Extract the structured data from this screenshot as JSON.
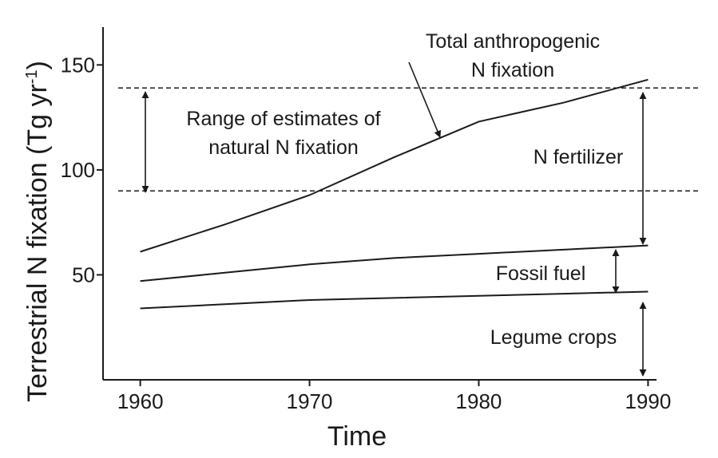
{
  "chart_data": {
    "type": "line",
    "title": "",
    "xlabel": "Time",
    "ylabel": {
      "main": "Terrestrial N fixation (Tg yr",
      "sup": "-1",
      "close": ")"
    },
    "xlim": [
      1957.8,
      1990.5
    ],
    "ylim": [
      0,
      168
    ],
    "xticks": [
      1960,
      1970,
      1980,
      1990
    ],
    "yticks": [
      50,
      100,
      150
    ],
    "grid": false,
    "series": [
      {
        "name": "Total anthropogenic N fixation",
        "x": [
          1960,
          1965,
          1970,
          1975,
          1980,
          1985,
          1990
        ],
        "y": [
          61,
          74,
          88,
          106,
          123,
          132,
          143
        ]
      },
      {
        "name": "Fossil fuel",
        "x": [
          1960,
          1965,
          1970,
          1975,
          1980,
          1985,
          1990
        ],
        "y": [
          47,
          51,
          55,
          58,
          60,
          62,
          64
        ]
      },
      {
        "name": "Legume crops",
        "x": [
          1960,
          1965,
          1970,
          1975,
          1980,
          1985,
          1990
        ],
        "y": [
          34,
          36,
          38,
          39,
          40,
          41,
          42
        ]
      }
    ],
    "reference_lines": [
      {
        "y": 139
      },
      {
        "y": 90
      }
    ],
    "annotations": {
      "total": [
        "Total anthropogenic",
        "N fixation"
      ],
      "range": [
        "Range of estimates of",
        "natural N fixation"
      ],
      "fertilizer": "N fertilizer",
      "fossil": "Fossil fuel",
      "legume": "Legume crops"
    }
  }
}
